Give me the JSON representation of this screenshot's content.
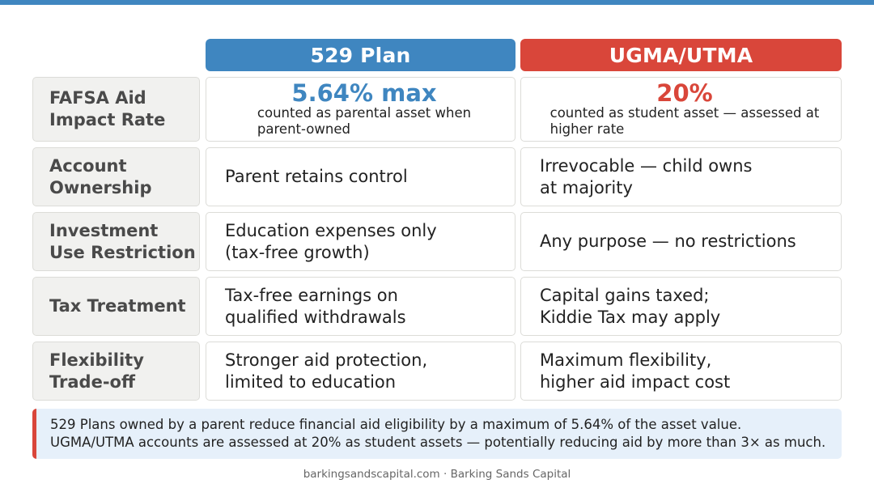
{
  "colors": {
    "plan529": "#3f86c0",
    "ugma": "#d9463a",
    "label_bg": "#f1f1ef",
    "note_bg": "#e6f0fa"
  },
  "headers": {
    "plan529": "529 Plan",
    "ugma": "UGMA/UTMA"
  },
  "rows": [
    {
      "label": "FAFSA Aid\nImpact Rate",
      "plan529": {
        "stat": "5.64% max",
        "desc": "counted as parental asset when\nparent-owned"
      },
      "ugma": {
        "stat": "20%",
        "desc": "counted as student asset — assessed at\nhigher rate"
      }
    },
    {
      "label": "Account\nOwnership",
      "plan529": {
        "text": "Parent retains control"
      },
      "ugma": {
        "text": "Irrevocable — child owns\nat majority"
      }
    },
    {
      "label": "Investment\nUse Restriction",
      "plan529": {
        "text": "Education expenses only\n(tax-free growth)"
      },
      "ugma": {
        "text": "Any purpose — no restrictions"
      }
    },
    {
      "label": "Tax Treatment",
      "plan529": {
        "text": "Tax-free earnings on\nqualified withdrawals"
      },
      "ugma": {
        "text": "Capital gains taxed;\nKiddie Tax may apply"
      }
    },
    {
      "label": "Flexibility\nTrade-off",
      "plan529": {
        "text": "Stronger aid protection,\nlimited to education"
      },
      "ugma": {
        "text": "Maximum flexibility,\nhigher aid impact cost"
      }
    }
  ],
  "note": {
    "line1": "529 Plans owned by a parent reduce financial aid eligibility by a maximum of 5.64% of the asset value.",
    "line2": "UGMA/UTMA accounts are assessed at 20% as student assets — potentially reducing aid by more than 3× as much."
  },
  "footer": "barkingsandscapital.com · Barking Sands Capital"
}
